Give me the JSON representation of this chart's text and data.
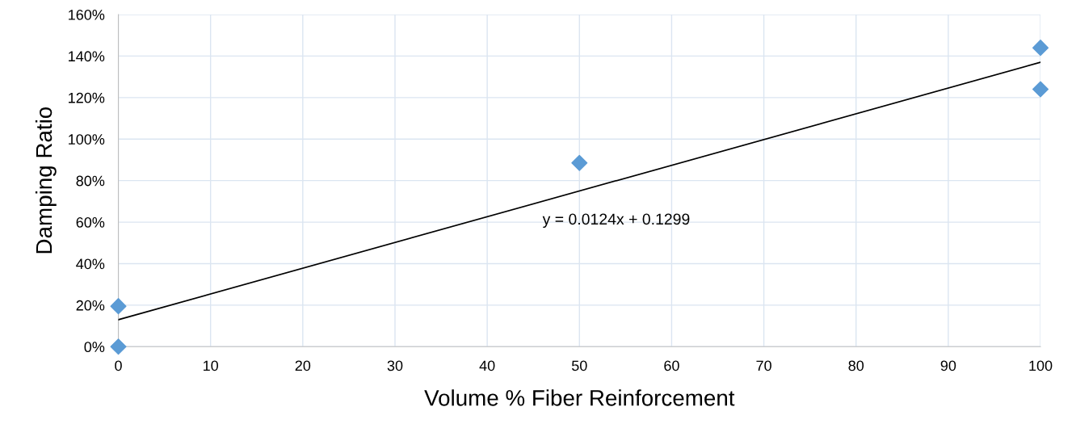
{
  "chart_data": {
    "type": "scatter",
    "xlabel": "Volume % Fiber Reinforcement",
    "ylabel": "Damping Ratio",
    "x": [
      0,
      0,
      50,
      100,
      100
    ],
    "series": [
      {
        "color": "#5b9bd5",
        "marker": "diamond",
        "values": [
          0,
          19.5,
          88.5,
          124,
          144
        ]
      },
      {
        "type": "line",
        "color": "#000000",
        "x": [
          0,
          100
        ],
        "values": [
          13,
          137
        ]
      }
    ],
    "xlim": [
      0,
      100
    ],
    "xticks": [
      0,
      10,
      20,
      30,
      40,
      50,
      60,
      70,
      80,
      90,
      100
    ],
    "ylim": [
      0,
      160
    ],
    "yticks": [
      {
        "value": 0,
        "label": "0%"
      },
      {
        "value": 20,
        "label": "20%"
      },
      {
        "value": 40,
        "label": "40%"
      },
      {
        "value": 60,
        "label": "60%"
      },
      {
        "value": 80,
        "label": "80%"
      },
      {
        "value": 100,
        "label": "100%"
      },
      {
        "value": 120,
        "label": "120%"
      },
      {
        "value": 140,
        "label": "140%"
      },
      {
        "value": 160,
        "label": "160%"
      }
    ],
    "grid": true,
    "legend": false,
    "annotations": [
      "y = 0.0124x + 0.1299"
    ]
  }
}
